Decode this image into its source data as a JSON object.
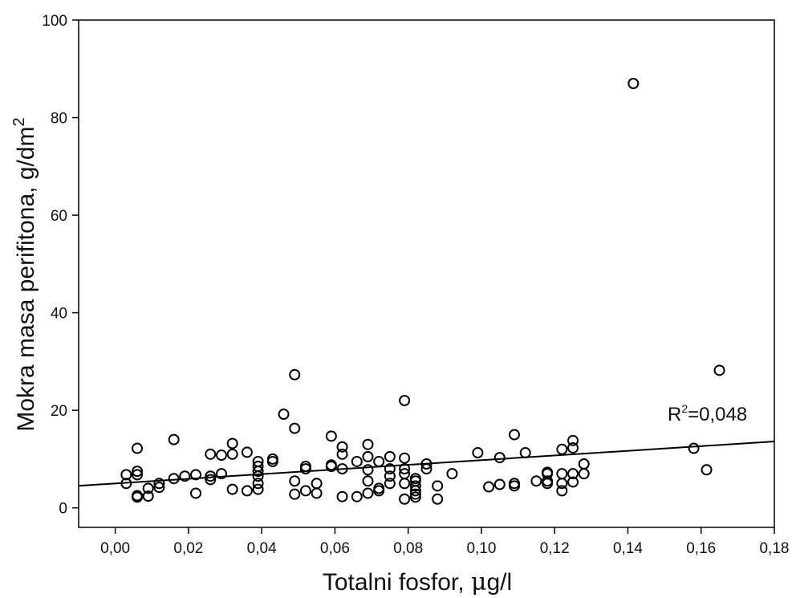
{
  "chart_data": {
    "type": "scatter",
    "xlabel_main": "Totalni fosfor, ",
    "xlabel_mu": "μ",
    "xlabel_rest": "g/l",
    "ylabel_main": "Mokra masa perifitona, g/dm",
    "ylabel_sup": "2",
    "annotation_main": "R",
    "annotation_sup": "2",
    "annotation_rest": "=0,048",
    "xlim": [
      -0.01,
      0.18
    ],
    "ylim": [
      -4,
      100
    ],
    "x_ticks": [
      0.0,
      0.02,
      0.04,
      0.06,
      0.08,
      0.1,
      0.12,
      0.14,
      0.16,
      0.18
    ],
    "x_tick_labels": [
      "0,00",
      "0,02",
      "0,04",
      "0,06",
      "0,08",
      "0,10",
      "0,12",
      "0,14",
      "0,16",
      "0,18"
    ],
    "y_ticks": [
      0,
      20,
      40,
      60,
      80,
      100
    ],
    "y_tick_labels": [
      "0",
      "20",
      "40",
      "60",
      "80",
      "100"
    ],
    "grid": false,
    "trend_line": {
      "intercept": 5.0,
      "slope": 47.8
    },
    "points": [
      [
        0.003,
        6.8
      ],
      [
        0.003,
        5.0
      ],
      [
        0.006,
        12.2
      ],
      [
        0.006,
        7.5
      ],
      [
        0.006,
        6.8
      ],
      [
        0.006,
        2.5
      ],
      [
        0.006,
        2.2
      ],
      [
        0.009,
        4.0
      ],
      [
        0.009,
        2.4
      ],
      [
        0.012,
        5.0
      ],
      [
        0.012,
        4.2
      ],
      [
        0.016,
        14.0
      ],
      [
        0.016,
        6.0
      ],
      [
        0.019,
        6.5
      ],
      [
        0.022,
        6.8
      ],
      [
        0.022,
        3.0
      ],
      [
        0.026,
        11.0
      ],
      [
        0.026,
        6.5
      ],
      [
        0.026,
        5.8
      ],
      [
        0.029,
        10.8
      ],
      [
        0.029,
        7.0
      ],
      [
        0.032,
        13.2
      ],
      [
        0.032,
        11.0
      ],
      [
        0.032,
        3.8
      ],
      [
        0.036,
        11.4
      ],
      [
        0.036,
        3.5
      ],
      [
        0.039,
        9.5
      ],
      [
        0.039,
        8.5
      ],
      [
        0.039,
        7.5
      ],
      [
        0.039,
        6.5
      ],
      [
        0.039,
        5.0
      ],
      [
        0.039,
        3.8
      ],
      [
        0.043,
        10.0
      ],
      [
        0.043,
        9.5
      ],
      [
        0.046,
        19.2
      ],
      [
        0.049,
        27.3
      ],
      [
        0.049,
        16.3
      ],
      [
        0.049,
        5.5
      ],
      [
        0.049,
        2.8
      ],
      [
        0.052,
        8.5
      ],
      [
        0.052,
        8.0
      ],
      [
        0.052,
        3.5
      ],
      [
        0.055,
        5.0
      ],
      [
        0.055,
        3.0
      ],
      [
        0.059,
        14.7
      ],
      [
        0.059,
        8.8
      ],
      [
        0.059,
        8.5
      ],
      [
        0.062,
        12.5
      ],
      [
        0.062,
        11.0
      ],
      [
        0.062,
        8.0
      ],
      [
        0.062,
        2.3
      ],
      [
        0.066,
        9.5
      ],
      [
        0.066,
        2.3
      ],
      [
        0.069,
        13.0
      ],
      [
        0.069,
        10.5
      ],
      [
        0.069,
        7.8
      ],
      [
        0.069,
        5.5
      ],
      [
        0.069,
        3.0
      ],
      [
        0.072,
        9.5
      ],
      [
        0.072,
        4.0
      ],
      [
        0.072,
        3.5
      ],
      [
        0.075,
        10.5
      ],
      [
        0.075,
        8.0
      ],
      [
        0.075,
        6.5
      ],
      [
        0.075,
        5.0
      ],
      [
        0.079,
        22.0
      ],
      [
        0.079,
        10.2
      ],
      [
        0.079,
        8.0
      ],
      [
        0.079,
        7.0
      ],
      [
        0.079,
        5.0
      ],
      [
        0.079,
        1.8
      ],
      [
        0.082,
        6.0
      ],
      [
        0.082,
        5.5
      ],
      [
        0.082,
        4.5
      ],
      [
        0.082,
        3.5
      ],
      [
        0.082,
        2.8
      ],
      [
        0.082,
        2.2
      ],
      [
        0.085,
        9.0
      ],
      [
        0.085,
        8.0
      ],
      [
        0.088,
        4.5
      ],
      [
        0.088,
        1.8
      ],
      [
        0.092,
        7.0
      ],
      [
        0.099,
        11.3
      ],
      [
        0.102,
        4.3
      ],
      [
        0.105,
        10.3
      ],
      [
        0.105,
        4.8
      ],
      [
        0.109,
        15.0
      ],
      [
        0.109,
        5.0
      ],
      [
        0.109,
        4.5
      ],
      [
        0.112,
        11.3
      ],
      [
        0.115,
        5.5
      ],
      [
        0.118,
        7.3
      ],
      [
        0.118,
        7.0
      ],
      [
        0.118,
        5.5
      ],
      [
        0.118,
        5.0
      ],
      [
        0.122,
        12.0
      ],
      [
        0.122,
        7.0
      ],
      [
        0.122,
        5.0
      ],
      [
        0.122,
        3.5
      ],
      [
        0.125,
        13.8
      ],
      [
        0.125,
        12.3
      ],
      [
        0.125,
        7.0
      ],
      [
        0.125,
        5.3
      ],
      [
        0.128,
        9.0
      ],
      [
        0.128,
        7.0
      ],
      [
        0.1415,
        87.0
      ],
      [
        0.158,
        12.2
      ],
      [
        0.1615,
        7.8
      ],
      [
        0.165,
        28.2
      ]
    ]
  }
}
